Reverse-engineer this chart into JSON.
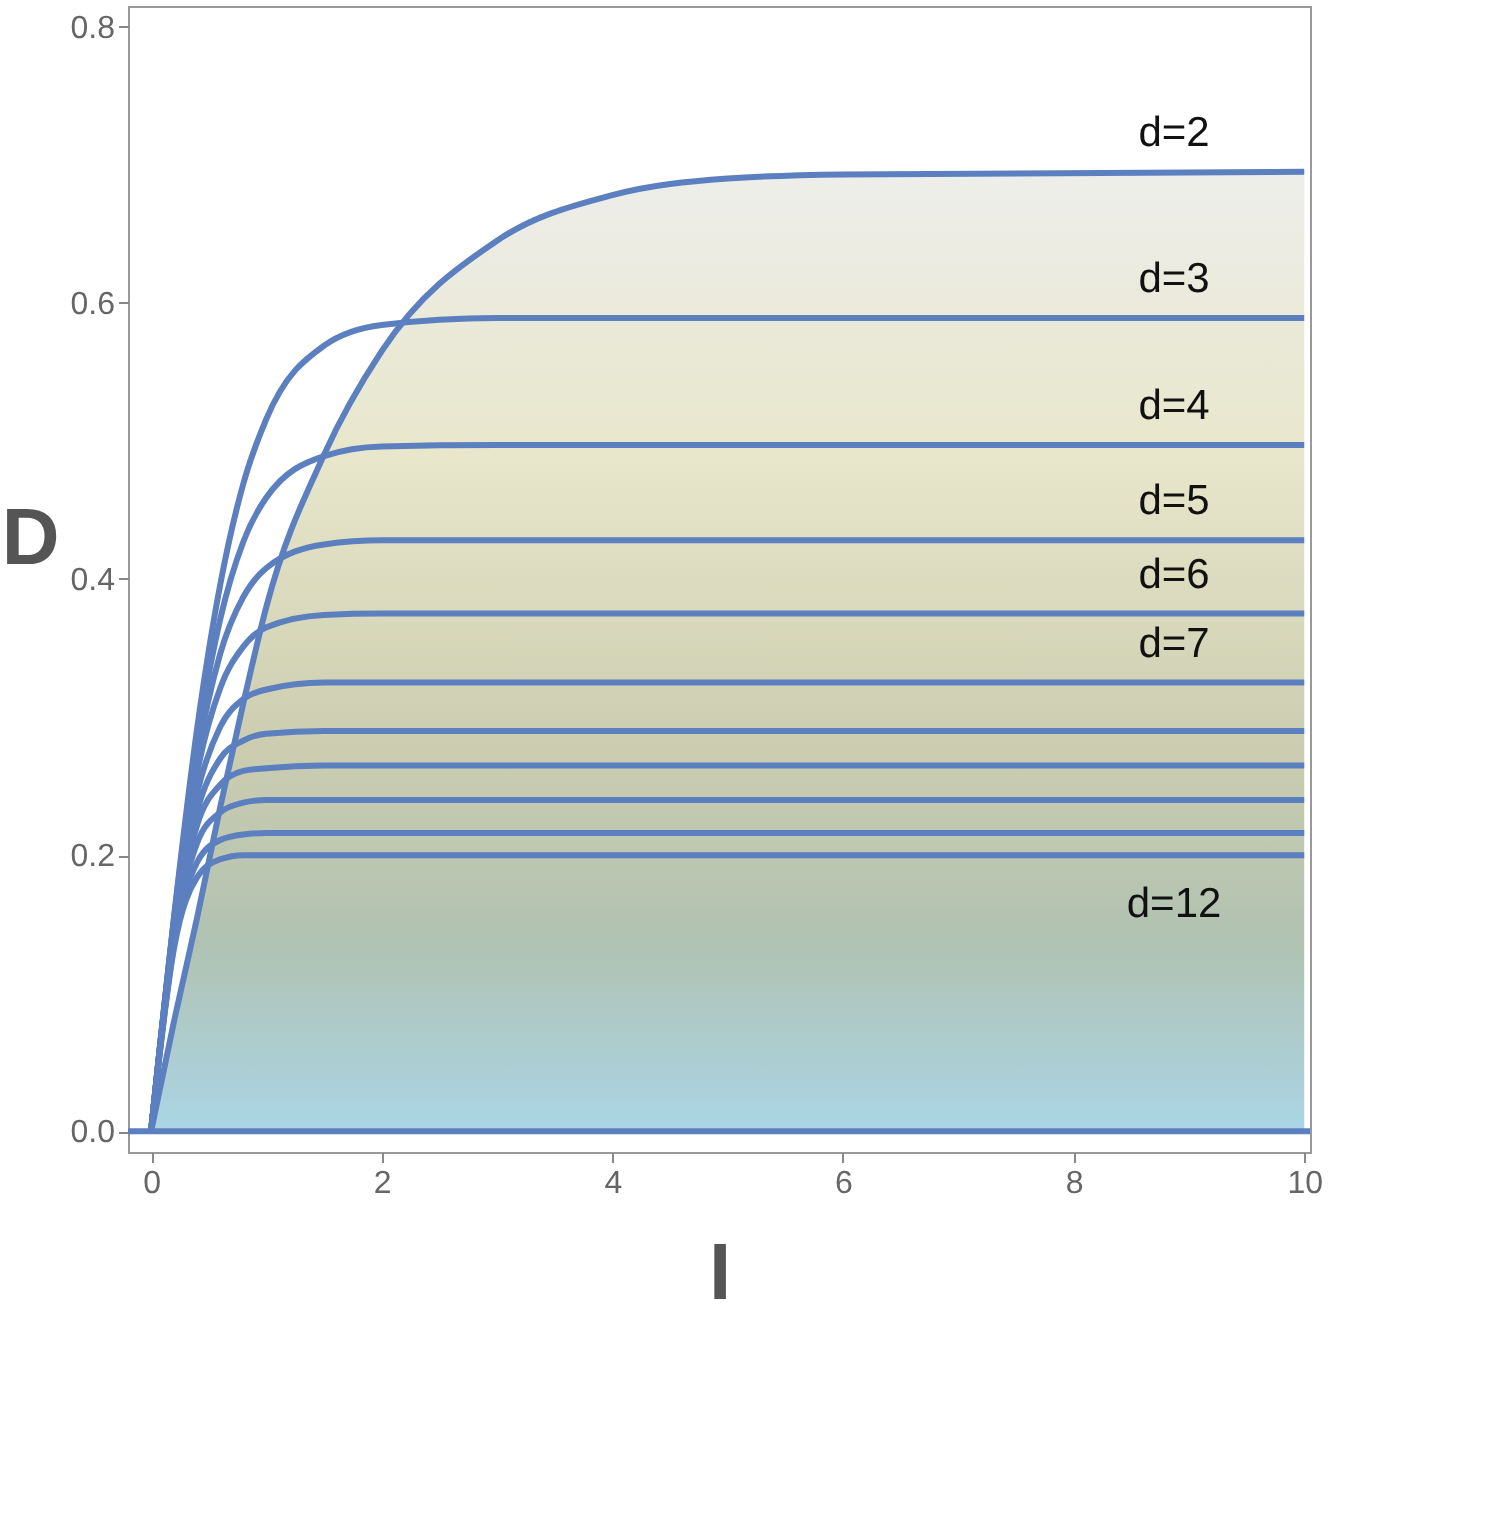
{
  "chart_data": {
    "type": "line",
    "xlabel": "I",
    "ylabel": "D",
    "x": [
      0,
      0.2,
      0.4,
      0.6,
      0.8,
      1,
      1.5,
      2,
      3,
      4,
      5,
      6,
      10
    ],
    "xlim": [
      -0.2,
      10.05
    ],
    "xticks": [
      0,
      2,
      4,
      6,
      8,
      10
    ],
    "ylim": [
      -0.015,
      0.815
    ],
    "yticks": [
      {
        "value": 0,
        "label": "0.0"
      },
      0.2,
      0.4,
      0.6,
      0.8
    ],
    "grid": false,
    "marker": "none",
    "line_style": "solid",
    "ref_lines": [
      {
        "axis": "y",
        "value": 0,
        "label": null,
        "color": "#5b7fbf"
      }
    ],
    "series": [
      {
        "name": "d=2",
        "type": "area",
        "color": "#5b7fbf",
        "values": [
          0,
          0.08,
          0.155,
          0.235,
          0.31,
          0.38,
          0.49,
          0.565,
          0.645,
          0.678,
          0.69,
          0.693,
          0.695
        ]
      },
      {
        "name": "d=3",
        "color": "#5b7fbf",
        "values": [
          0,
          0.156,
          0.292,
          0.396,
          0.469,
          0.516,
          0.569,
          0.584,
          0.589,
          0.589,
          0.589,
          0.589,
          0.589
        ]
      },
      {
        "name": "d=4",
        "color": "#5b7fbf",
        "values": [
          0,
          0.155,
          0.282,
          0.371,
          0.427,
          0.459,
          0.489,
          0.496,
          0.497,
          0.497,
          0.497,
          0.497,
          0.497
        ]
      },
      {
        "name": "d=5",
        "color": "#5b7fbf",
        "values": [
          0,
          0.153,
          0.271,
          0.346,
          0.387,
          0.408,
          0.425,
          0.428,
          0.428,
          0.428,
          0.428,
          0.428,
          0.428
        ]
      },
      {
        "name": "d=6",
        "color": "#5b7fbf",
        "values": [
          0,
          0.151,
          0.26,
          0.321,
          0.351,
          0.365,
          0.374,
          0.375,
          0.375,
          0.375,
          0.375,
          0.375,
          0.375
        ]
      },
      {
        "name": "d=7",
        "color": "#5b7fbf",
        "values": [
          0,
          0.148,
          0.245,
          0.293,
          0.313,
          0.32,
          0.325,
          0.325,
          0.325,
          0.325,
          0.325,
          0.325,
          0.325
        ]
      },
      {
        "color": "#5b7fbf",
        "values": [
          0,
          0.146,
          0.232,
          0.27,
          0.283,
          0.288,
          0.29,
          0.29,
          0.29,
          0.29,
          0.29,
          0.29,
          0.29
        ]
      },
      {
        "color": "#5b7fbf",
        "values": [
          0,
          0.143,
          0.222,
          0.251,
          0.261,
          0.263,
          0.265,
          0.265,
          0.265,
          0.265,
          0.265,
          0.265,
          0.265
        ]
      },
      {
        "color": "#5b7fbf",
        "values": [
          0,
          0.14,
          0.209,
          0.231,
          0.238,
          0.24,
          0.24,
          0.24,
          0.24,
          0.24,
          0.24,
          0.24,
          0.24
        ]
      },
      {
        "color": "#5b7fbf",
        "values": [
          0,
          0.136,
          0.195,
          0.211,
          0.215,
          0.216,
          0.216,
          0.216,
          0.216,
          0.216,
          0.216,
          0.216,
          0.216
        ]
      },
      {
        "name": "d=12",
        "color": "#5b7fbf",
        "values": [
          0,
          0.133,
          0.184,
          0.197,
          0.2,
          0.2,
          0.2,
          0.2,
          0.2,
          0.2,
          0.2,
          0.2,
          0.2
        ]
      }
    ]
  }
}
